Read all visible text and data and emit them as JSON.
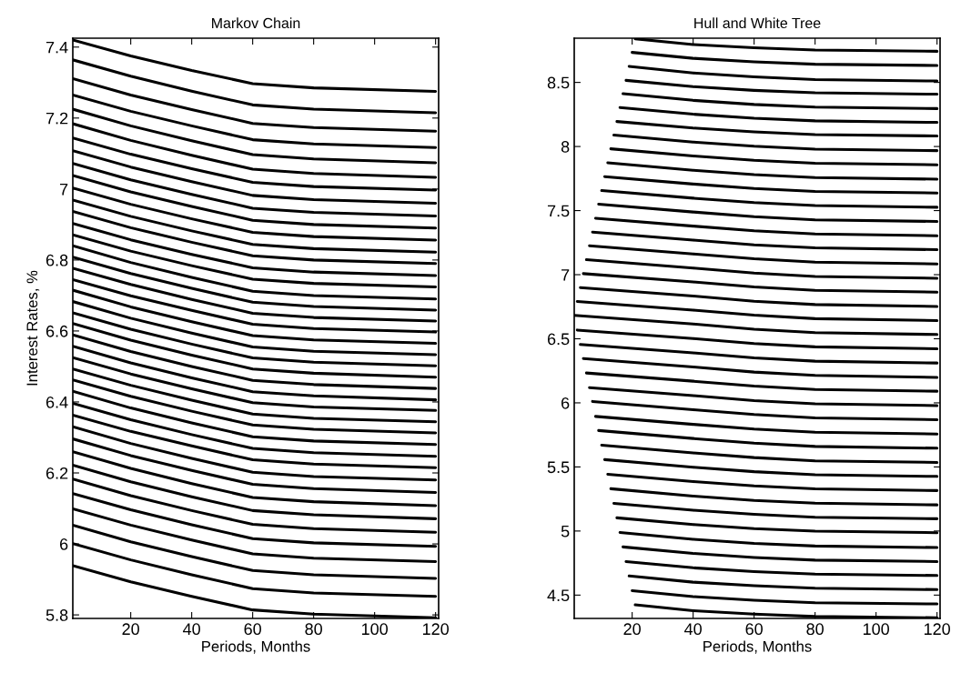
{
  "chart_data": [
    {
      "type": "line",
      "title": "Markov Chain",
      "xlabel": "Periods, Months",
      "ylabel": "Interest Rates, %",
      "color": "#000000",
      "xlim": [
        1,
        121
      ],
      "ylim": [
        5.79,
        7.425
      ],
      "xticks": [
        20,
        40,
        60,
        80,
        100,
        120
      ],
      "yticks": [
        5.8,
        6,
        6.2,
        6.4,
        6.6,
        6.8,
        7,
        7.2,
        7.4
      ],
      "x": [
        1,
        20,
        40,
        60,
        80,
        120
      ],
      "series": [
        {
          "values": [
            7.42,
            7.375,
            7.334,
            7.297,
            7.285,
            7.275
          ]
        },
        {
          "values": [
            7.364,
            7.318,
            7.276,
            7.237,
            7.225,
            7.215
          ]
        },
        {
          "values": [
            7.311,
            7.265,
            7.224,
            7.185,
            7.173,
            7.163
          ]
        },
        {
          "values": [
            7.265,
            7.219,
            7.178,
            7.139,
            7.127,
            7.117
          ]
        },
        {
          "values": [
            7.225,
            7.178,
            7.136,
            7.097,
            7.085,
            7.074
          ]
        },
        {
          "values": [
            7.184,
            7.137,
            7.095,
            7.056,
            7.044,
            7.033
          ]
        },
        {
          "values": [
            7.144,
            7.098,
            7.057,
            7.019,
            7.007,
            6.997
          ]
        },
        {
          "values": [
            7.108,
            7.062,
            7.021,
            6.982,
            6.97,
            6.96
          ]
        },
        {
          "values": [
            7.072,
            7.026,
            6.985,
            6.946,
            6.934,
            6.924
          ]
        },
        {
          "values": [
            7.038,
            6.992,
            6.951,
            6.912,
            6.9,
            6.89
          ]
        },
        {
          "values": [
            7.003,
            6.957,
            6.916,
            6.878,
            6.866,
            6.856
          ]
        },
        {
          "values": [
            6.969,
            6.923,
            6.882,
            6.844,
            6.832,
            6.822
          ]
        },
        {
          "values": [
            6.937,
            6.891,
            6.85,
            6.812,
            6.8,
            6.79
          ]
        },
        {
          "values": [
            6.903,
            6.857,
            6.816,
            6.778,
            6.766,
            6.756
          ]
        },
        {
          "values": [
            6.871,
            6.825,
            6.784,
            6.746,
            6.734,
            6.724
          ]
        },
        {
          "values": [
            6.84,
            6.793,
            6.751,
            6.712,
            6.7,
            6.69
          ]
        },
        {
          "values": [
            6.808,
            6.762,
            6.72,
            6.681,
            6.669,
            6.659
          ]
        },
        {
          "values": [
            6.777,
            6.731,
            6.689,
            6.65,
            6.638,
            6.628
          ]
        },
        {
          "values": [
            6.745,
            6.699,
            6.658,
            6.619,
            6.607,
            6.597
          ]
        },
        {
          "values": [
            6.715,
            6.668,
            6.626,
            6.587,
            6.575,
            6.565
          ]
        },
        {
          "values": [
            6.683,
            6.636,
            6.594,
            6.555,
            6.543,
            6.533
          ]
        },
        {
          "values": [
            6.651,
            6.605,
            6.563,
            6.524,
            6.512,
            6.502
          ]
        },
        {
          "values": [
            6.621,
            6.574,
            6.532,
            6.493,
            6.481,
            6.47
          ]
        },
        {
          "values": [
            6.589,
            6.542,
            6.5,
            6.461,
            6.449,
            6.438
          ]
        },
        {
          "values": [
            6.557,
            6.51,
            6.468,
            6.429,
            6.417,
            6.406
          ]
        },
        {
          "values": [
            6.525,
            6.479,
            6.437,
            6.398,
            6.386,
            6.376
          ]
        },
        {
          "values": [
            6.493,
            6.447,
            6.405,
            6.366,
            6.354,
            6.344
          ]
        },
        {
          "values": [
            6.462,
            6.416,
            6.374,
            6.335,
            6.323,
            6.313
          ]
        },
        {
          "values": [
            6.43,
            6.383,
            6.341,
            6.302,
            6.29,
            6.28
          ]
        },
        {
          "values": [
            6.396,
            6.35,
            6.308,
            6.269,
            6.257,
            6.247
          ]
        },
        {
          "values": [
            6.363,
            6.317,
            6.276,
            6.237,
            6.225,
            6.215
          ]
        },
        {
          "values": [
            6.33,
            6.283,
            6.241,
            6.202,
            6.19,
            6.18
          ]
        },
        {
          "values": [
            6.296,
            6.249,
            6.207,
            6.168,
            6.156,
            6.145
          ]
        },
        {
          "values": [
            6.26,
            6.213,
            6.17,
            6.131,
            6.119,
            6.108
          ]
        },
        {
          "values": [
            6.222,
            6.175,
            6.133,
            6.094,
            6.082,
            6.071
          ]
        },
        {
          "values": [
            6.183,
            6.136,
            6.094,
            6.055,
            6.043,
            6.033
          ]
        },
        {
          "values": [
            6.142,
            6.096,
            6.054,
            6.015,
            6.003,
            5.993
          ]
        },
        {
          "values": [
            6.099,
            6.053,
            6.011,
            5.972,
            5.96,
            5.95
          ]
        },
        {
          "values": [
            6.053,
            6.006,
            5.964,
            5.925,
            5.913,
            5.903
          ]
        },
        {
          "values": [
            6.001,
            5.955,
            5.913,
            5.874,
            5.862,
            5.852
          ]
        },
        {
          "values": [
            5.939,
            5.893,
            5.852,
            5.814,
            5.802,
            5.792
          ]
        }
      ]
    },
    {
      "type": "line",
      "title": "Hull and White Tree",
      "xlabel": "Periods, Months",
      "color": "#000000",
      "xlim": [
        1,
        121
      ],
      "ylim": [
        4.318,
        8.845
      ],
      "xticks": [
        20,
        40,
        60,
        80,
        100,
        120
      ],
      "yticks": [
        4.5,
        5,
        5.5,
        6,
        6.5,
        7,
        7.5,
        8,
        8.5
      ],
      "series": [
        {
          "x": [
            21,
            40,
            60,
            80,
            120
          ],
          "values": [
            8.84,
            8.796,
            8.77,
            8.753,
            8.743
          ]
        },
        {
          "x": [
            20,
            40,
            60,
            80,
            120
          ],
          "values": [
            8.734,
            8.688,
            8.661,
            8.642,
            8.632
          ]
        },
        {
          "x": [
            19,
            40,
            60,
            80,
            120
          ],
          "values": [
            8.625,
            8.574,
            8.543,
            8.522,
            8.511
          ]
        },
        {
          "x": [
            18,
            40,
            60,
            80,
            120
          ],
          "values": [
            8.516,
            8.467,
            8.438,
            8.419,
            8.408
          ]
        },
        {
          "x": [
            17,
            40,
            60,
            80,
            120
          ],
          "values": [
            8.412,
            8.36,
            8.328,
            8.308,
            8.296
          ]
        },
        {
          "x": [
            16,
            40,
            60,
            80,
            120
          ],
          "values": [
            8.304,
            8.252,
            8.22,
            8.2,
            8.188
          ]
        },
        {
          "x": [
            15,
            40,
            60,
            80,
            120
          ],
          "values": [
            8.195,
            8.144,
            8.114,
            8.093,
            8.082
          ]
        },
        {
          "x": [
            14,
            40,
            60,
            80,
            120
          ],
          "values": [
            8.089,
            8.035,
            8.002,
            7.98,
            7.968
          ]
        },
        {
          "x": [
            13,
            40,
            60,
            80,
            120
          ],
          "values": [
            7.982,
            7.926,
            7.892,
            7.869,
            7.857
          ]
        },
        {
          "x": [
            12,
            40,
            60,
            80,
            120
          ],
          "values": [
            7.873,
            7.815,
            7.781,
            7.758,
            7.745
          ]
        },
        {
          "x": [
            11,
            40,
            60,
            80,
            120
          ],
          "values": [
            7.765,
            7.707,
            7.673,
            7.65,
            7.637
          ]
        },
        {
          "x": [
            10,
            40,
            60,
            80,
            120
          ],
          "values": [
            7.656,
            7.597,
            7.562,
            7.539,
            7.526
          ]
        },
        {
          "x": [
            9,
            40,
            60,
            80,
            120
          ],
          "values": [
            7.55,
            7.489,
            7.453,
            7.428,
            7.415
          ]
        },
        {
          "x": [
            8,
            40,
            60,
            80,
            120
          ],
          "values": [
            7.44,
            7.379,
            7.342,
            7.318,
            7.304
          ]
        },
        {
          "x": [
            7,
            40,
            60,
            80,
            120
          ],
          "values": [
            7.332,
            7.27,
            7.233,
            7.209,
            7.195
          ]
        },
        {
          "x": [
            6,
            40,
            60,
            80,
            120
          ],
          "values": [
            7.226,
            7.162,
            7.124,
            7.098,
            7.084
          ]
        },
        {
          "x": [
            5,
            40,
            60,
            80,
            120
          ],
          "values": [
            7.117,
            7.052,
            7.013,
            6.986,
            6.972
          ]
        },
        {
          "x": [
            4,
            40,
            60,
            80,
            120
          ],
          "values": [
            7.008,
            6.943,
            6.904,
            6.878,
            6.864
          ]
        },
        {
          "x": [
            3,
            40,
            60,
            80,
            120
          ],
          "values": [
            6.899,
            6.833,
            6.793,
            6.767,
            6.752
          ]
        },
        {
          "x": [
            2,
            40,
            60,
            80,
            120
          ],
          "values": [
            6.791,
            6.724,
            6.684,
            6.657,
            6.642
          ]
        },
        {
          "x": [
            1,
            40,
            60,
            80,
            120
          ],
          "values": [
            6.682,
            6.615,
            6.575,
            6.548,
            6.533
          ]
        },
        {
          "x": [
            2,
            40,
            60,
            80,
            120
          ],
          "values": [
            6.568,
            6.502,
            6.463,
            6.437,
            6.422
          ]
        },
        {
          "x": [
            3,
            40,
            60,
            80,
            120
          ],
          "values": [
            6.455,
            6.39,
            6.351,
            6.325,
            6.311
          ]
        },
        {
          "x": [
            4,
            40,
            60,
            80,
            120
          ],
          "values": [
            6.346,
            6.28,
            6.24,
            6.214,
            6.199
          ]
        },
        {
          "x": [
            5,
            40,
            60,
            80,
            120
          ],
          "values": [
            6.233,
            6.169,
            6.131,
            6.105,
            6.091
          ]
        },
        {
          "x": [
            6,
            40,
            60,
            80,
            120
          ],
          "values": [
            6.119,
            6.056,
            6.018,
            5.993,
            5.979
          ]
        },
        {
          "x": [
            7,
            40,
            60,
            80,
            120
          ],
          "values": [
            6.011,
            5.947,
            5.909,
            5.883,
            5.869
          ]
        },
        {
          "x": [
            8,
            40,
            60,
            80,
            120
          ],
          "values": [
            5.894,
            5.832,
            5.795,
            5.771,
            5.757
          ]
        },
        {
          "x": [
            9,
            40,
            60,
            80,
            120
          ],
          "values": [
            5.784,
            5.722,
            5.685,
            5.66,
            5.646
          ]
        },
        {
          "x": [
            10,
            40,
            60,
            80,
            120
          ],
          "values": [
            5.67,
            5.609,
            5.573,
            5.548,
            5.535
          ]
        },
        {
          "x": [
            11,
            40,
            60,
            80,
            120
          ],
          "values": [
            5.557,
            5.498,
            5.463,
            5.439,
            5.426
          ]
        },
        {
          "x": [
            12,
            40,
            60,
            80,
            120
          ],
          "values": [
            5.443,
            5.386,
            5.352,
            5.329,
            5.316
          ]
        },
        {
          "x": [
            13,
            40,
            60,
            80,
            120
          ],
          "values": [
            5.33,
            5.273,
            5.239,
            5.217,
            5.204
          ]
        },
        {
          "x": [
            14,
            40,
            60,
            80,
            120
          ],
          "values": [
            5.216,
            5.162,
            5.13,
            5.108,
            5.096
          ]
        },
        {
          "x": [
            15,
            40,
            60,
            80,
            120
          ],
          "values": [
            5.103,
            5.051,
            5.019,
            4.999,
            4.987
          ]
        },
        {
          "x": [
            16,
            40,
            60,
            80,
            120
          ],
          "values": [
            4.989,
            4.936,
            4.904,
            4.883,
            4.871
          ]
        },
        {
          "x": [
            17,
            40,
            60,
            80,
            120
          ],
          "values": [
            4.876,
            4.825,
            4.794,
            4.773,
            4.762
          ]
        },
        {
          "x": [
            18,
            40,
            60,
            80,
            120
          ],
          "values": [
            4.762,
            4.713,
            4.684,
            4.664,
            4.653
          ]
        },
        {
          "x": [
            19,
            40,
            60,
            80,
            120
          ],
          "values": [
            4.649,
            4.601,
            4.573,
            4.554,
            4.543
          ]
        },
        {
          "x": [
            20,
            40,
            60,
            80,
            120
          ],
          "values": [
            4.535,
            4.488,
            4.46,
            4.441,
            4.431
          ]
        },
        {
          "x": [
            21,
            40,
            60,
            80,
            120
          ],
          "values": [
            4.424,
            4.379,
            4.351,
            4.333,
            4.323
          ]
        }
      ]
    }
  ]
}
